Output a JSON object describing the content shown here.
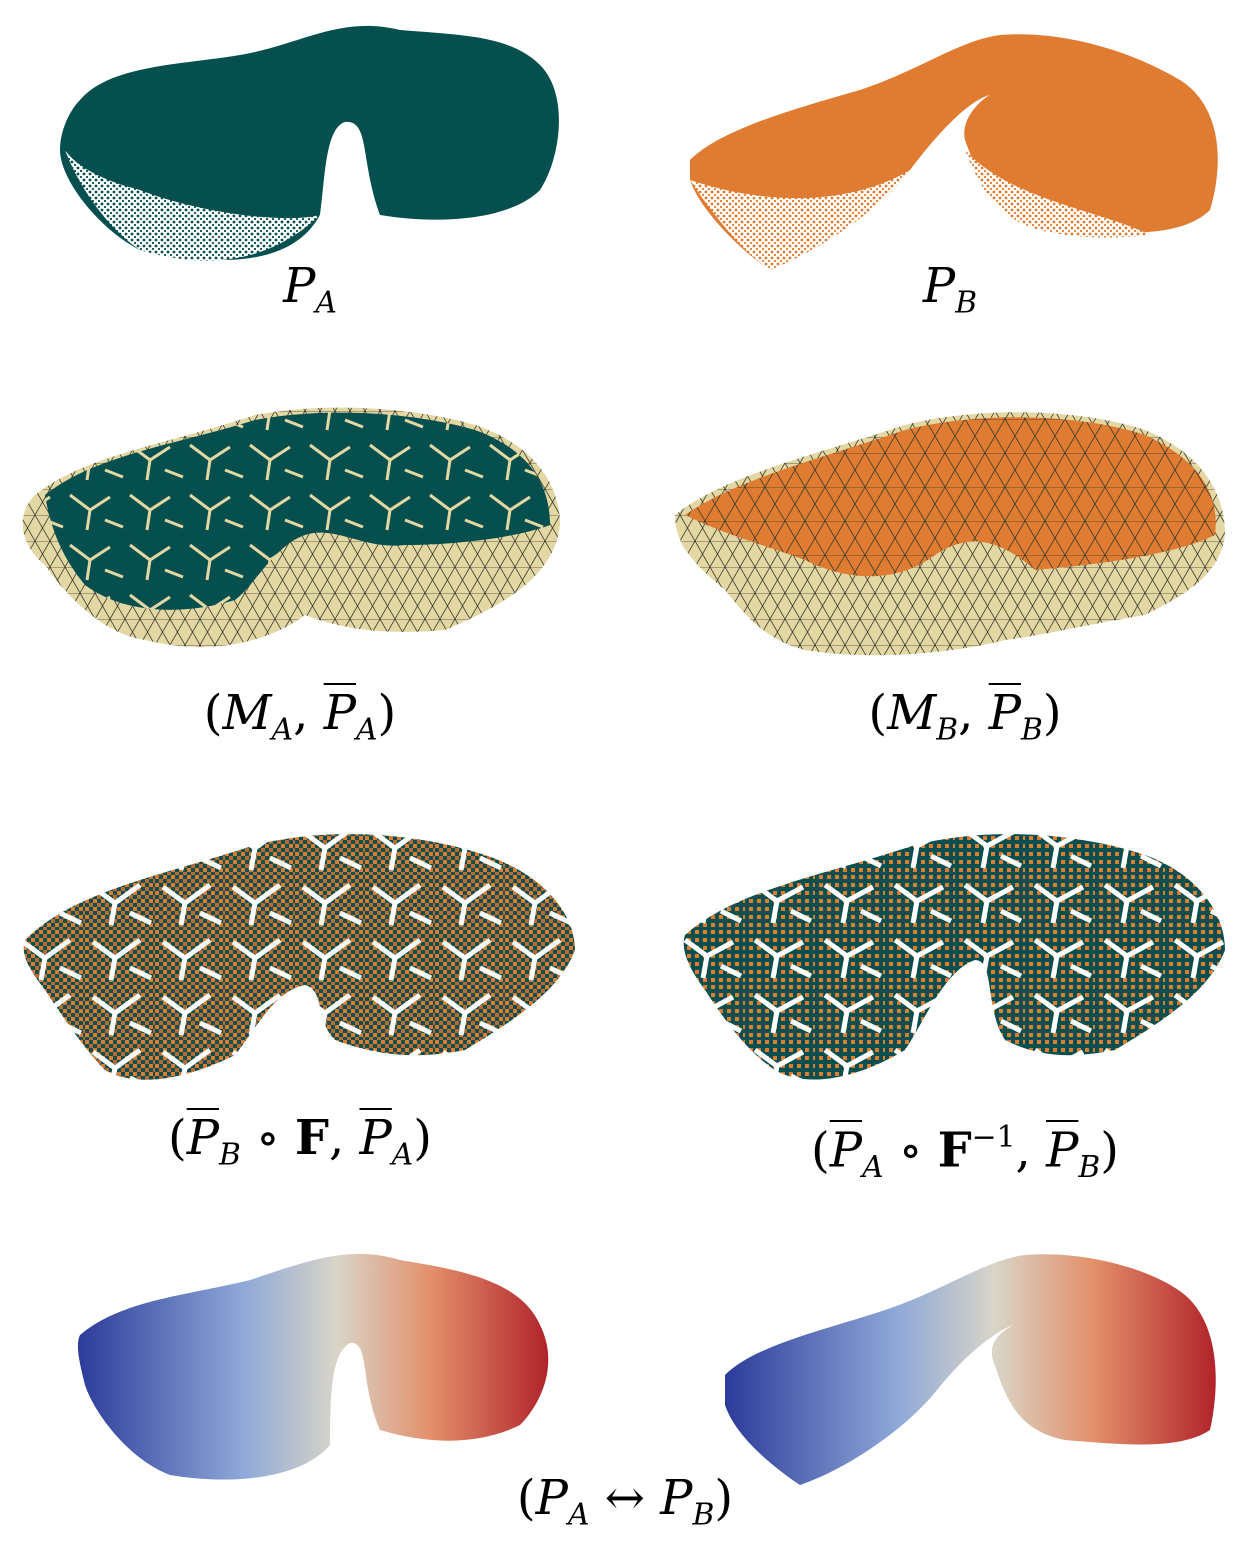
{
  "figure": {
    "rows": [
      {
        "left_caption": {
          "parts": [
            "P",
            "A"
          ]
        },
        "right_caption": {
          "parts": [
            "P",
            "B"
          ]
        }
      },
      {
        "left_caption": {
          "parts": [
            "(",
            "M",
            "A",
            ", ",
            "P",
            "A",
            ")"
          ]
        },
        "right_caption": {
          "parts": [
            "(",
            "M",
            "B",
            ", ",
            "P",
            "B",
            ")"
          ]
        }
      },
      {
        "left_caption": {
          "parts": [
            "(",
            "P",
            "B",
            " ∘ ",
            "F",
            ", ",
            "P",
            "A",
            ")"
          ]
        },
        "right_caption": {
          "parts": [
            "(",
            "P",
            "A",
            " ∘ ",
            "F",
            "−1",
            ", ",
            "P",
            "B",
            ")"
          ]
        }
      },
      {
        "center_caption": {
          "parts": [
            "(",
            "P",
            "A",
            " ↔ ",
            "P",
            "B",
            ")"
          ]
        }
      }
    ]
  },
  "colors": {
    "teal": "#054f4f",
    "orange": "#e07c31",
    "beige": "#e3d8a4",
    "mesh_edge": "#3a3a2a",
    "blue": "#2c3b9a",
    "white_mid": "#d9d5c8",
    "red": "#b1232a"
  }
}
